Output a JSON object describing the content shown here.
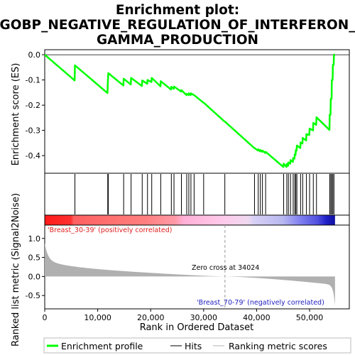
{
  "chart_data": {
    "type": "line",
    "title_lines": [
      "Enrichment plot:",
      "GOBP_NEGATIVE_REGULATION_OF_INTERFERON_",
      "GAMMA_PRODUCTION"
    ],
    "xlabel": "Rank in Ordered Dataset",
    "ylabel_top": "Enrichment score (ES)",
    "ylabel_bottom": "Ranked list metric (Signal2Noise)",
    "xlim": [
      0,
      57500
    ],
    "ylim_top": [
      -0.47,
      0.02
    ],
    "ylim_bottom": [
      -0.85,
      1.35
    ],
    "xticks": [
      0,
      10000,
      20000,
      30000,
      40000,
      50000
    ],
    "xtick_labels": [
      "0",
      "10,000",
      "20,000",
      "30,000",
      "40,000",
      "50,000"
    ],
    "yticks_top": [
      0.0,
      -0.1,
      -0.2,
      -0.3,
      -0.4
    ],
    "ytick_labels_top": [
      "0.0",
      "-0.1",
      "-0.2",
      "-0.3",
      "-0.4"
    ],
    "yticks_bottom": [
      1.0,
      0.5,
      0.0,
      -0.5
    ],
    "ytick_labels_bottom": [
      "1.0",
      "0.5",
      "0.0",
      "-0.5"
    ],
    "n_genes": 54800,
    "zero_cross": 34024,
    "zero_cross_label": "Zero cross at 34024",
    "pos_label": "'Breast_30-39' (positively correlated)",
    "neg_label": "'Breast_70-79' (negatively correlated)",
    "hits": [
      5700,
      11900,
      12000,
      14900,
      16300,
      18400,
      19400,
      20200,
      21900,
      23900,
      24400,
      25800,
      26800,
      27200,
      27600,
      28200,
      30000,
      34000,
      39600,
      40300,
      40700,
      41100,
      41700,
      45100,
      45700,
      46000,
      46400,
      46900,
      47200,
      47400,
      47600,
      48300,
      48700,
      49400,
      50000,
      50700,
      51300,
      53800,
      54000,
      54200,
      54400,
      54600
    ],
    "es_profile": [
      [
        0,
        0.0
      ],
      [
        5650,
        -0.102
      ],
      [
        5700,
        -0.042
      ],
      [
        11850,
        -0.152
      ],
      [
        11900,
        -0.115
      ],
      [
        12000,
        -0.073
      ],
      [
        14850,
        -0.122
      ],
      [
        14900,
        -0.095
      ],
      [
        16250,
        -0.118
      ],
      [
        16300,
        -0.092
      ],
      [
        18350,
        -0.124
      ],
      [
        18400,
        -0.102
      ],
      [
        19350,
        -0.115
      ],
      [
        19400,
        -0.1
      ],
      [
        20150,
        -0.108
      ],
      [
        20200,
        -0.092
      ],
      [
        21850,
        -0.125
      ],
      [
        21900,
        -0.105
      ],
      [
        23850,
        -0.138
      ],
      [
        23900,
        -0.127
      ],
      [
        24350,
        -0.135
      ],
      [
        24400,
        -0.126
      ],
      [
        25750,
        -0.146
      ],
      [
        25800,
        -0.14
      ],
      [
        26750,
        -0.16
      ],
      [
        26800,
        -0.155
      ],
      [
        27150,
        -0.16
      ],
      [
        27200,
        -0.153
      ],
      [
        27550,
        -0.16
      ],
      [
        27600,
        -0.153
      ],
      [
        28150,
        -0.16
      ],
      [
        28200,
        -0.16
      ],
      [
        29950,
        -0.19
      ],
      [
        30000,
        -0.19
      ],
      [
        33950,
        -0.265
      ],
      [
        34000,
        -0.265
      ],
      [
        39550,
        -0.37
      ],
      [
        39600,
        -0.37
      ],
      [
        40250,
        -0.38
      ],
      [
        40300,
        -0.375
      ],
      [
        40650,
        -0.383
      ],
      [
        40700,
        -0.378
      ],
      [
        41050,
        -0.385
      ],
      [
        41100,
        -0.38
      ],
      [
        41650,
        -0.39
      ],
      [
        41700,
        -0.385
      ],
      [
        45050,
        -0.445
      ],
      [
        45100,
        -0.432
      ],
      [
        45650,
        -0.445
      ],
      [
        45700,
        -0.433
      ],
      [
        45950,
        -0.44
      ],
      [
        46000,
        -0.427
      ],
      [
        46350,
        -0.432
      ],
      [
        46400,
        -0.418
      ],
      [
        46850,
        -0.425
      ],
      [
        46900,
        -0.41
      ],
      [
        47150,
        -0.412
      ],
      [
        47200,
        -0.395
      ],
      [
        47350,
        -0.397
      ],
      [
        47400,
        -0.378
      ],
      [
        47550,
        -0.38
      ],
      [
        47600,
        -0.36
      ],
      [
        48250,
        -0.37
      ],
      [
        48300,
        -0.348
      ],
      [
        48650,
        -0.352
      ],
      [
        48700,
        -0.33
      ],
      [
        49350,
        -0.34
      ],
      [
        49400,
        -0.315
      ],
      [
        49950,
        -0.318
      ],
      [
        50000,
        -0.293
      ],
      [
        50650,
        -0.3
      ],
      [
        50700,
        -0.27
      ],
      [
        51250,
        -0.278
      ],
      [
        51300,
        -0.248
      ],
      [
        53750,
        -0.298
      ],
      [
        53800,
        -0.238
      ],
      [
        53950,
        -0.238
      ],
      [
        54000,
        -0.175
      ],
      [
        54150,
        -0.175
      ],
      [
        54200,
        -0.1
      ],
      [
        54350,
        -0.1
      ],
      [
        54400,
        -0.04
      ],
      [
        54550,
        -0.04
      ],
      [
        54600,
        0.0
      ],
      [
        54800,
        0.0
      ]
    ],
    "legend": [
      "Enrichment profile",
      "Hits",
      "Ranking metric scores"
    ],
    "colors": {
      "profile": "#00ff00",
      "hits": "#000000",
      "metric_fill": "#b0b0b0",
      "pos_text": "#e02020",
      "neg_text": "#2020c0",
      "zero_line": "#999999"
    }
  }
}
